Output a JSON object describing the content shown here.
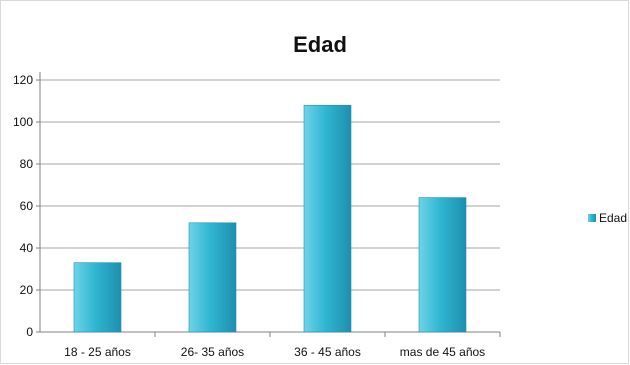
{
  "chart_data": {
    "type": "bar",
    "title": "Edad",
    "xlabel": "",
    "ylabel": "",
    "categories": [
      "18 - 25 años",
      "26- 35 años",
      "36 - 45 años",
      "mas de 45 años"
    ],
    "series": [
      {
        "name": "Edad",
        "values": [
          33,
          52,
          108,
          64
        ]
      }
    ],
    "ylim": [
      0,
      120
    ],
    "yticks": [
      "0",
      "20",
      "40",
      "60",
      "80",
      "100",
      "120"
    ],
    "grid": true,
    "legend": "right",
    "colors": {
      "bar_main": "#2fb6d2",
      "bar_light": "#6fd3e8",
      "bar_dark": "#1e8fae",
      "grid": "#a6a6a6",
      "axis": "#808080"
    }
  }
}
